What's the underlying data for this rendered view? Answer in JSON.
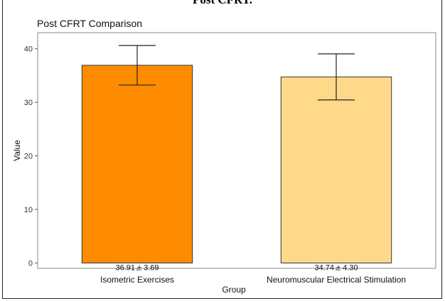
{
  "page": {
    "heading": "Post CFRT."
  },
  "chart_data": {
    "type": "bar",
    "title": "Post CFRT Comparison",
    "xlabel": "Group",
    "ylabel": "Value",
    "categories": [
      "Isometric Exercises",
      "Neuromuscular Electrical Stimulation"
    ],
    "values": [
      36.91,
      34.74
    ],
    "errors": [
      3.69,
      4.3
    ],
    "data_labels": [
      "36.91 ± 3.69",
      "34.74 ± 4.30"
    ],
    "bar_colors": [
      "#FF8C00",
      "#FFD98A"
    ],
    "yticks": [
      0,
      10,
      20,
      30,
      40
    ],
    "ylim": [
      -1,
      43
    ],
    "grid": false,
    "legend": "none"
  }
}
